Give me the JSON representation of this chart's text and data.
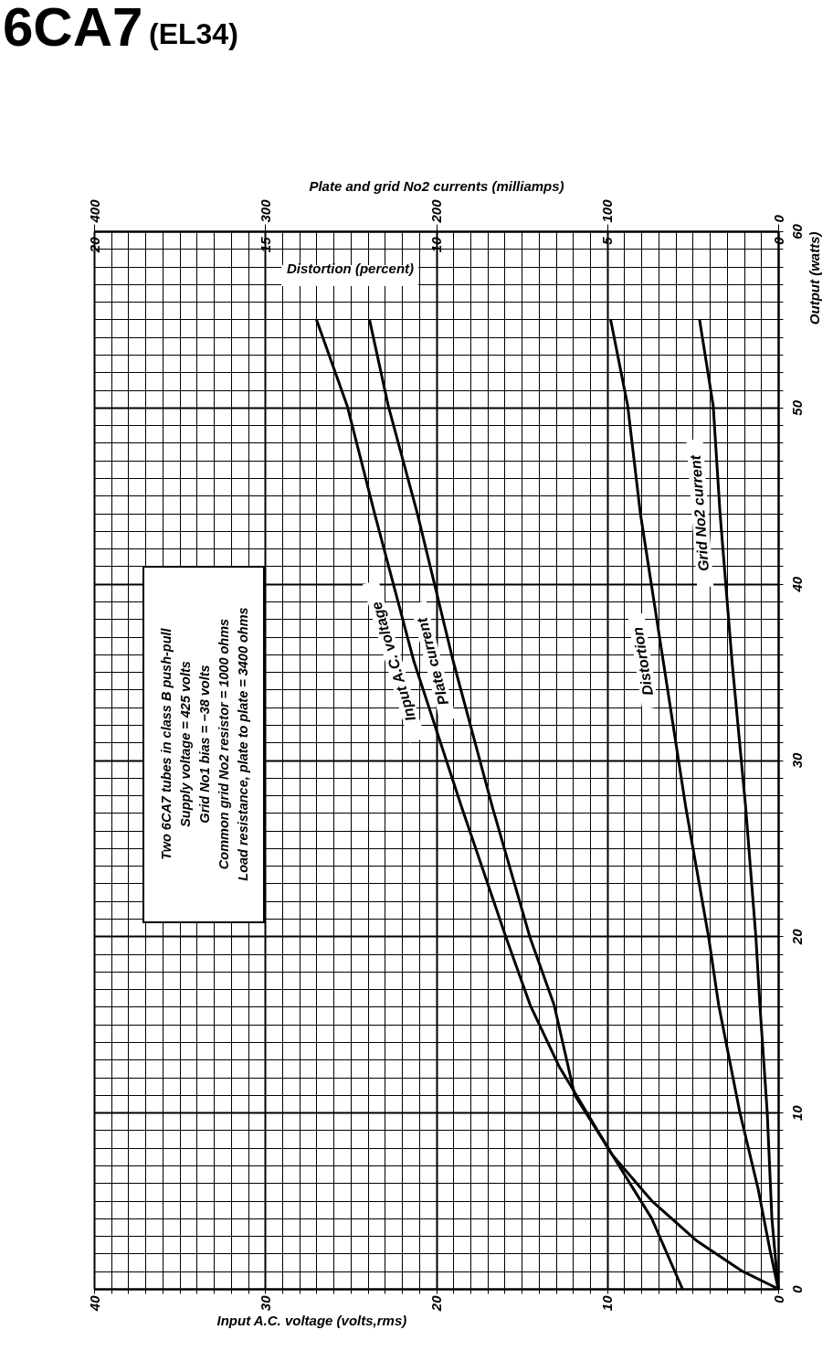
{
  "chart_data": [
    {
      "type": "line",
      "title": "6CA7",
      "subtitle": "(EL34)",
      "xlabel": "Input A.C. voltage (volts,rms)",
      "ylabel": "Output (watts)",
      "x2label": "Plate and grid No2 currents (milliamps)",
      "xlim": [
        40,
        0
      ],
      "xticks": [
        0,
        {
          "value": 1,
          "label": null
        },
        {
          "value": 2,
          "label": null
        },
        {
          "value": 3,
          "label": null
        },
        {
          "value": 4,
          "label": null
        },
        {
          "value": 5,
          "label": null
        },
        {
          "value": 6,
          "label": null
        },
        {
          "value": 7,
          "label": null
        },
        {
          "value": 8,
          "label": null
        },
        {
          "value": 9,
          "label": null
        },
        10,
        {
          "value": 11,
          "label": null
        },
        {
          "value": 12,
          "label": null
        },
        {
          "value": 13,
          "label": null
        },
        {
          "value": 14,
          "label": null
        },
        {
          "value": 15,
          "label": null
        },
        {
          "value": 16,
          "label": null
        },
        {
          "value": 17,
          "label": null
        },
        {
          "value": 18,
          "label": null
        },
        {
          "value": 19,
          "label": null
        },
        20,
        {
          "value": 21,
          "label": null
        },
        {
          "value": 22,
          "label": null
        },
        {
          "value": 23,
          "label": null
        },
        {
          "value": 24,
          "label": null
        },
        {
          "value": 25,
          "label": null
        },
        {
          "value": 26,
          "label": null
        },
        {
          "value": 27,
          "label": null
        },
        {
          "value": 28,
          "label": null
        },
        {
          "value": 29,
          "label": null
        },
        30,
        {
          "value": 31,
          "label": null
        },
        {
          "value": 32,
          "label": null
        },
        {
          "value": 33,
          "label": null
        },
        {
          "value": 34,
          "label": null
        },
        {
          "value": 35,
          "label": null
        },
        {
          "value": 36,
          "label": null
        },
        {
          "value": 37,
          "label": null
        },
        {
          "value": 38,
          "label": null
        },
        {
          "value": 39,
          "label": null
        },
        40
      ],
      "ylim": [
        0,
        60
      ],
      "yticks": [
        0,
        {
          "value": 1,
          "label": null
        },
        {
          "value": 2,
          "label": null
        },
        {
          "value": 3,
          "label": null
        },
        {
          "value": 4,
          "label": null
        },
        {
          "value": 5,
          "label": null
        },
        {
          "value": 6,
          "label": null
        },
        {
          "value": 7,
          "label": null
        },
        {
          "value": 8,
          "label": null
        },
        {
          "value": 9,
          "label": null
        },
        10,
        {
          "value": 11,
          "label": null
        },
        {
          "value": 12,
          "label": null
        },
        {
          "value": 13,
          "label": null
        },
        {
          "value": 14,
          "label": null
        },
        {
          "value": 15,
          "label": null
        },
        {
          "value": 16,
          "label": null
        },
        {
          "value": 17,
          "label": null
        },
        {
          "value": 18,
          "label": null
        },
        {
          "value": 19,
          "label": null
        },
        20,
        {
          "value": 21,
          "label": null
        },
        {
          "value": 22,
          "label": null
        },
        {
          "value": 23,
          "label": null
        },
        {
          "value": 24,
          "label": null
        },
        {
          "value": 25,
          "label": null
        },
        {
          "value": 26,
          "label": null
        },
        {
          "value": 27,
          "label": null
        },
        {
          "value": 28,
          "label": null
        },
        {
          "value": 29,
          "label": null
        },
        30,
        {
          "value": 31,
          "label": null
        },
        {
          "value": 32,
          "label": null
        },
        {
          "value": 33,
          "label": null
        },
        {
          "value": 34,
          "label": null
        },
        {
          "value": 35,
          "label": null
        },
        {
          "value": 36,
          "label": null
        },
        {
          "value": 37,
          "label": null
        },
        {
          "value": 38,
          "label": null
        },
        {
          "value": 39,
          "label": null
        },
        40,
        {
          "value": 41,
          "label": null
        },
        {
          "value": 42,
          "label": null
        },
        {
          "value": 43,
          "label": null
        },
        {
          "value": 44,
          "label": null
        },
        {
          "value": 45,
          "label": null
        },
        {
          "value": 46,
          "label": null
        },
        {
          "value": 47,
          "label": null
        },
        {
          "value": 48,
          "label": null
        },
        {
          "value": 49,
          "label": null
        },
        50,
        {
          "value": 51,
          "label": null
        },
        {
          "value": 52,
          "label": null
        },
        {
          "value": 53,
          "label": null
        },
        {
          "value": 54,
          "label": null
        },
        {
          "value": 55,
          "label": null
        },
        {
          "value": 56,
          "label": null
        },
        {
          "value": 57,
          "label": null
        },
        {
          "value": 58,
          "label": null
        },
        {
          "value": 59,
          "label": null
        },
        60
      ],
      "x2lim": [
        400,
        0
      ],
      "x2ticks": [
        0,
        100,
        200,
        300,
        400
      ],
      "grid": true,
      "line_style": "solid",
      "series": [
        {
          "name": "Input A.C. voltage",
          "color": "#000000",
          "x": [
            5.6,
            7.4,
            9.7,
            12.8,
            14.5,
            15.9,
            18.5,
            21.3,
            23.6,
            25.2,
            27.0
          ],
          "values": [
            0,
            4,
            7.6,
            12.6,
            16.1,
            19.9,
            27.3,
            35.6,
            44,
            50.1,
            55
          ]
        },
        {
          "name": "Plate current",
          "color": "#000000",
          "axis": "x2",
          "x": [
            0,
            21,
            48,
            74,
            97,
            119,
            131,
            145,
            167,
            190,
            211,
            228,
            239
          ],
          "values": [
            0,
            1,
            2.75,
            5,
            7.6,
            11,
            16.1,
            19.9,
            27.3,
            35.6,
            44,
            50.1,
            55
          ]
        },
        {
          "name": "Grid No2 current",
          "color": "#000000",
          "axis": "x2",
          "x": [
            0,
            3.7,
            6.4,
            10.7,
            13,
            19,
            27,
            34,
            38,
            46
          ],
          "values": [
            0,
            4,
            10,
            16.1,
            19.9,
            27.3,
            35.6,
            44,
            50.1,
            55
          ]
        }
      ],
      "annotations": [
        "Two 6CA7 tubes in class B push-pull",
        "Supply voltage = 425 volts",
        "Grid No1 bias = −38 volts",
        "Common grid No2 resistor = 1000 ohms",
        "Load resistance, plate to plate = 3400 ohms"
      ]
    },
    {
      "type": "line",
      "xlabel": "Distortion (percent)",
      "xlim": [
        20,
        0
      ],
      "xticks": [
        0,
        5,
        10,
        15,
        20
      ],
      "ylim": [
        0,
        60
      ],
      "tick_labels": "x",
      "line_style": "solid",
      "series": [
        {
          "name": "Distortion",
          "color": "#000000",
          "x": [
            0,
            0.24,
            0.59,
            1.12,
            1.74,
            2.03,
            2.7,
            3.36,
            4.03,
            4.4,
            4.9
          ],
          "values": [
            0,
            2.2,
            5.7,
            10,
            16.1,
            19.9,
            27.3,
            35.6,
            44,
            50.1,
            55
          ]
        }
      ]
    }
  ]
}
